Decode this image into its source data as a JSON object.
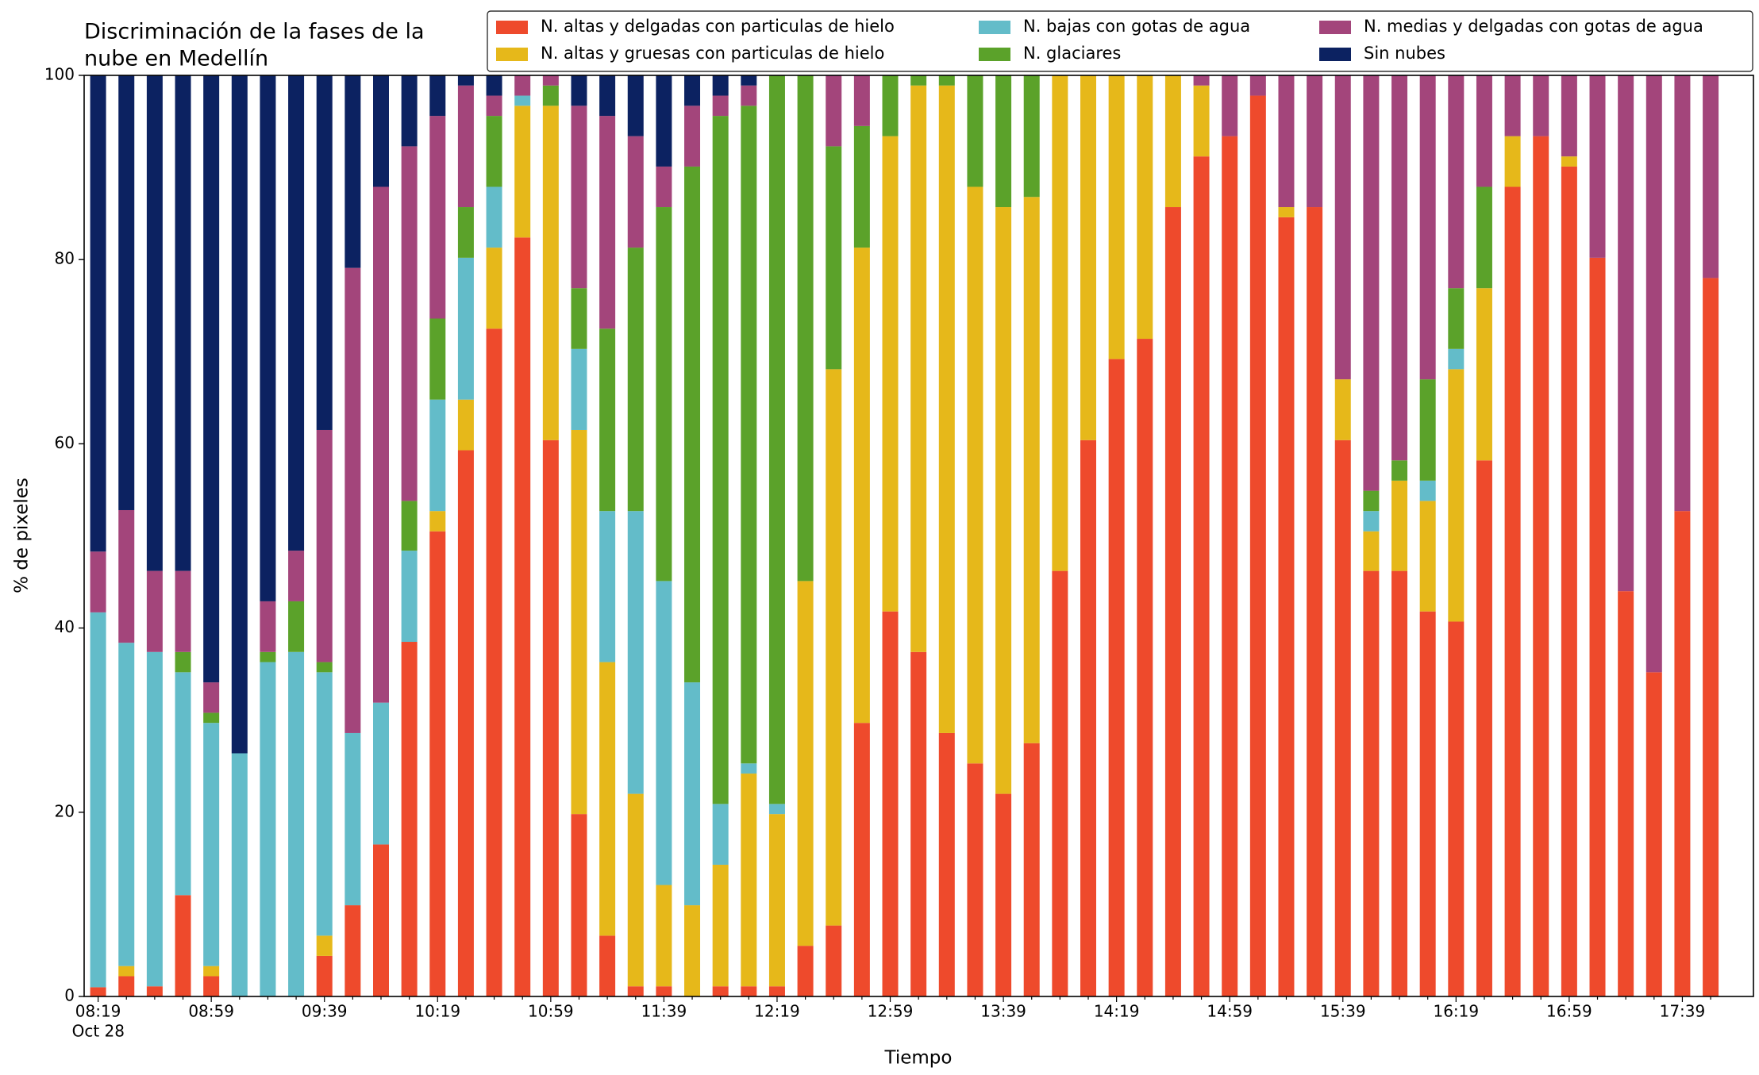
{
  "chart_data": {
    "type": "stacked_bar",
    "title": [
      "Discriminación de la fases de la",
      "nube en Medellín"
    ],
    "xlabel": "Tiempo",
    "ylabel": "% de pixeles",
    "x_date_label": "Oct 28",
    "categories": [
      "08:19",
      null,
      null,
      null,
      "08:59",
      null,
      null,
      null,
      "09:39",
      null,
      null,
      null,
      "10:19",
      null,
      null,
      null,
      "10:59",
      null,
      null,
      null,
      "11:39",
      null,
      null,
      null,
      "12:19",
      null,
      null,
      null,
      "12:59",
      null,
      null,
      null,
      "13:39",
      null,
      null,
      null,
      "14:19",
      null,
      null,
      null,
      "14:59",
      null,
      null,
      null,
      "15:39",
      null,
      null,
      null,
      "16:19",
      null,
      null,
      null,
      "16:59",
      null,
      null,
      null,
      "17:39",
      null
    ],
    "ylim": [
      0,
      100
    ],
    "yticks": [
      0,
      20,
      40,
      60,
      80,
      100
    ],
    "series": [
      {
        "name": "N. altas y delgadas con particulas de hielo",
        "color": "#ee4a2c",
        "values": [
          1,
          2.2,
          1.1,
          11,
          2.2,
          0,
          0,
          0,
          4.4,
          9.9,
          16.5,
          38.5,
          50.5,
          59.3,
          72.5,
          82.4,
          60.4,
          19.8,
          6.6,
          1.1,
          1.1,
          0,
          1.1,
          1.1,
          1.1,
          5.5,
          7.7,
          29.7,
          41.8,
          37.4,
          28.6,
          25.3,
          22,
          27.5,
          46.2,
          60.4,
          69.2,
          71.4,
          85.7,
          91.2,
          93.4,
          97.8,
          84.6,
          85.7,
          60.4,
          46.2,
          46.2,
          41.8,
          40.7,
          58.2,
          87.9,
          93.4,
          90.1,
          80.2,
          44,
          35.2,
          52.7,
          78
        ]
      },
      {
        "name": "N. altas y gruesas con particulas de hielo",
        "color": "#e6b81a",
        "values": [
          0,
          1.1,
          0,
          0,
          1.1,
          0,
          0,
          0,
          2.2,
          0,
          0,
          0,
          2.2,
          5.5,
          8.8,
          14.3,
          36.3,
          41.7,
          29.7,
          20.9,
          11,
          9.9,
          13.2,
          23.1,
          18.7,
          39.6,
          60.4,
          51.6,
          51.6,
          61.5,
          70.3,
          62.6,
          63.7,
          59.3,
          53.8,
          39.6,
          30.8,
          28.6,
          14.3,
          7.7,
          0,
          0,
          1.1,
          0,
          6.6,
          4.3,
          9.8,
          12,
          27.4,
          18.7,
          5.5,
          0,
          1.1,
          0,
          0,
          0,
          0,
          0
        ]
      },
      {
        "name": "N. bajas con gotas de agua",
        "color": "#63bcc9",
        "values": [
          40.7,
          35.1,
          36.3,
          24.2,
          26.4,
          26.4,
          36.3,
          37.4,
          28.6,
          18.7,
          15.4,
          9.9,
          12.1,
          15.4,
          6.6,
          1.1,
          0,
          8.8,
          16.4,
          30.7,
          33,
          24.2,
          6.6,
          1.1,
          1.1,
          0,
          0,
          0,
          0,
          0,
          0,
          0,
          0,
          0,
          0,
          0,
          0,
          0,
          0,
          0,
          0,
          0,
          0,
          0,
          0,
          2.2,
          0,
          2.2,
          2.2,
          0,
          0,
          0,
          0,
          0,
          0,
          0,
          0,
          0
        ]
      },
      {
        "name": "N. glaciares",
        "color": "#5ba22a",
        "values": [
          0,
          0,
          0,
          2.2,
          1.1,
          0,
          1.1,
          5.5,
          1.1,
          0,
          0,
          5.4,
          8.8,
          5.5,
          7.7,
          0,
          2.2,
          6.6,
          19.8,
          28.6,
          40.6,
          56,
          74.7,
          71.4,
          79.1,
          54.9,
          24.2,
          13.2,
          6.6,
          1.1,
          1.1,
          12.1,
          14.3,
          13.2,
          0,
          0,
          0,
          0,
          0,
          0,
          0,
          0,
          0,
          0,
          0,
          2.2,
          2.2,
          11,
          6.6,
          11,
          0,
          0,
          0,
          0,
          0,
          0,
          0,
          0
        ]
      },
      {
        "name": "N. medias y delgadas con gotas de agua",
        "color": "#a3457b",
        "values": [
          6.6,
          14.4,
          8.8,
          8.8,
          3.3,
          0,
          5.5,
          5.5,
          25.2,
          50.5,
          56,
          38.5,
          22,
          13.2,
          2.2,
          2.2,
          1.1,
          19.8,
          23.1,
          12.1,
          4.4,
          6.6,
          2.2,
          2.2,
          0,
          0,
          7.7,
          5.5,
          0,
          0,
          0,
          0,
          0,
          0,
          0,
          0,
          0,
          0,
          0,
          1.1,
          6.6,
          2.2,
          14.3,
          14.3,
          33,
          45.1,
          41.8,
          33,
          23.1,
          12.1,
          6.6,
          6.6,
          8.8,
          19.8,
          56,
          64.8,
          47.3,
          22
        ]
      },
      {
        "name": "Sin nubes",
        "color": "#0c2261",
        "values": [
          51.7,
          47.2,
          53.8,
          53.8,
          65.9,
          73.6,
          57.1,
          51.6,
          38.5,
          20.9,
          12.1,
          7.7,
          4.4,
          1.1,
          2.2,
          0,
          0,
          3.3,
          4.4,
          6.6,
          9.9,
          3.3,
          2.2,
          1.1,
          0,
          0,
          0,
          0,
          0,
          0,
          0,
          0,
          0,
          0,
          0,
          0,
          0,
          0,
          0,
          0,
          0,
          0,
          0,
          0,
          0,
          0,
          0,
          0,
          0,
          0,
          0,
          0,
          0,
          0,
          0,
          0,
          0,
          0
        ]
      }
    ],
    "legend": "top-right",
    "grid": false
  }
}
